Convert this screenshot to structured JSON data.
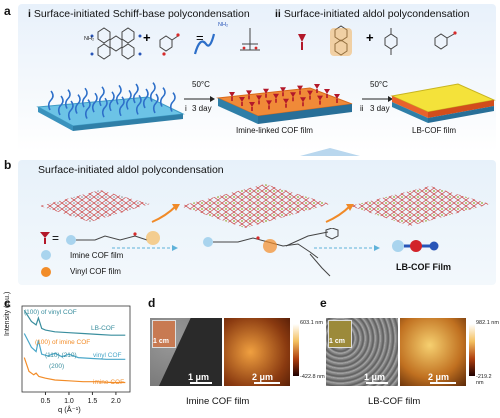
{
  "panel_a": {
    "letter": "a",
    "step_i_roman": "i",
    "step_i_title": "Surface-initiated Schiff-base polycondensation",
    "step_ii_roman": "ii",
    "step_ii_title": "Surface-initiated aldol polycondensation",
    "plus": "+",
    "equals": "=",
    "arrow1_temp": "50°C",
    "arrow1_step": "i",
    "arrow1_time": "3 day",
    "arrow2_temp": "50°C",
    "arrow2_step": "ii",
    "arrow2_time": "3 day",
    "film1_label": "Imine-linked COF film",
    "film2_label": "LB-COF film",
    "nh2": "NH₂"
  },
  "panel_b": {
    "letter": "b",
    "title": "Surface-initiated aldol polycondensation",
    "equals": "=",
    "legend_imine": "Imine COF film",
    "legend_vinyl": "Vinyl COF film",
    "product_label": "LB-COF Film"
  },
  "panel_c": {
    "letter": "c",
    "xlabel": "q (Å⁻¹)",
    "ylabel": "Intensity (a.u.)",
    "x_ticks": [
      "0.5",
      "1.0",
      "1.5",
      "2.0"
    ],
    "annotations": {
      "vinyl_100": "(100) of vinyl COF",
      "imine_100": "(100) of imine COF",
      "peaks_110_210": "(110)  (210)",
      "peak_200": "(200)"
    },
    "colors": {
      "lb": "#3a8e9e",
      "vinyl": "#4aa7c9",
      "imine": "#f28c28"
    }
  },
  "chart_data": {
    "type": "line",
    "xlabel": "q (Å⁻¹)",
    "ylabel": "Intensity (a.u.)",
    "xlim": [
      0.0,
      2.3
    ],
    "series": [
      {
        "name": "LB-COF",
        "x": [
          0.05,
          0.2,
          0.3,
          0.35,
          0.42,
          0.5,
          0.7,
          1.0,
          1.3,
          1.6,
          1.9,
          2.2
        ],
        "y": [
          0.95,
          0.82,
          0.78,
          0.86,
          0.74,
          0.72,
          0.7,
          0.69,
          0.68,
          0.67,
          0.66,
          0.66
        ]
      },
      {
        "name": "vinyl COF",
        "x": [
          0.05,
          0.2,
          0.3,
          0.35,
          0.42,
          0.55,
          0.7,
          0.85,
          1.0,
          1.2,
          1.5,
          1.8,
          2.2
        ],
        "y": [
          0.68,
          0.52,
          0.47,
          0.6,
          0.44,
          0.42,
          0.45,
          0.41,
          0.44,
          0.4,
          0.39,
          0.38,
          0.38
        ]
      },
      {
        "name": "imine COF",
        "x": [
          0.05,
          0.15,
          0.25,
          0.3,
          0.36,
          0.5,
          0.7,
          1.0,
          1.3,
          1.6,
          1.9,
          2.2
        ],
        "y": [
          0.4,
          0.24,
          0.2,
          0.22,
          0.18,
          0.16,
          0.14,
          0.13,
          0.12,
          0.12,
          0.11,
          0.11
        ]
      }
    ]
  },
  "panel_d": {
    "letter": "d",
    "inset_scale": "1 cm",
    "sem_scale": "1 μm",
    "afm_scale": "2 μm",
    "cbar_max": "603.1 nm",
    "cbar_min": "-422.8 nm",
    "caption": "Imine COF film"
  },
  "panel_e": {
    "letter": "e",
    "inset_scale": "1 cm",
    "sem_scale": "1 μm",
    "afm_scale": "2 μm",
    "cbar_max": "982.1 nm",
    "cbar_min": "-219.2 nm",
    "caption": "LB-COF film"
  }
}
